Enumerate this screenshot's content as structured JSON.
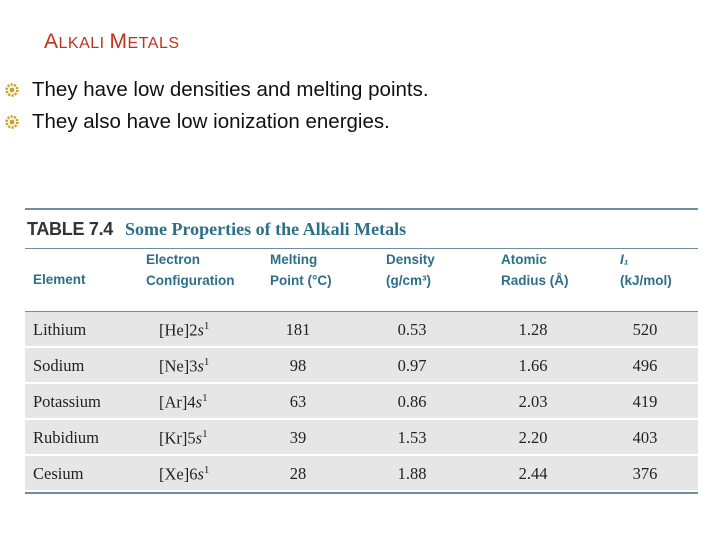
{
  "slide": {
    "title_first": "A",
    "title_rest1": "LKALI ",
    "title_second": "M",
    "title_rest2": "ETALS",
    "bullets": [
      "They have low densities and melting points.",
      "They also have low ionization energies."
    ],
    "bullet_color": "#c9a227",
    "title_color": "#c0311f"
  },
  "table": {
    "number": "TABLE 7.4",
    "caption": "Some Properties of the Alkali Metals",
    "headers": {
      "element": "Element",
      "config_1": "Electron",
      "config_2": "Configuration",
      "melting_1": "Melting",
      "melting_2": "Point (°C)",
      "density_1": "Density",
      "density_2": "(g/cm³)",
      "radius_1": "Atomic",
      "radius_2": "Radius (Å)",
      "ie_1": "I₁",
      "ie_2": "(kJ/mol)"
    },
    "rows": [
      {
        "element": "Lithium",
        "core": "[He]2",
        "sub": "s",
        "exp": "1",
        "melting": "181",
        "density": "0.53",
        "radius": "1.28",
        "ie": "520"
      },
      {
        "element": "Sodium",
        "core": "[Ne]3",
        "sub": "s",
        "exp": "1",
        "melting": "98",
        "density": "0.97",
        "radius": "1.66",
        "ie": "496"
      },
      {
        "element": "Potassium",
        "core": "[Ar]4",
        "sub": "s",
        "exp": "1",
        "melting": "63",
        "density": "0.86",
        "radius": "2.03",
        "ie": "419"
      },
      {
        "element": "Rubidium",
        "core": "[Kr]5",
        "sub": "s",
        "exp": "1",
        "melting": "39",
        "density": "1.53",
        "radius": "2.20",
        "ie": "403"
      },
      {
        "element": "Cesium",
        "core": "[Xe]6",
        "sub": "s",
        "exp": "1",
        "melting": "28",
        "density": "1.88",
        "radius": "2.44",
        "ie": "376"
      }
    ]
  }
}
